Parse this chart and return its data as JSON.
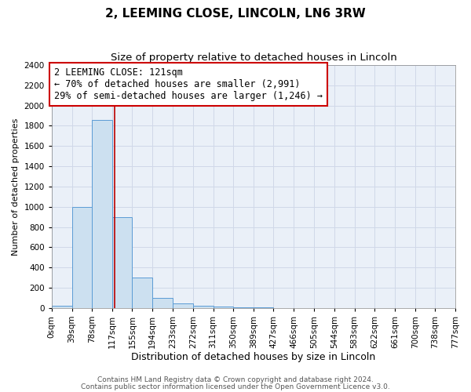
{
  "title": "2, LEEMING CLOSE, LINCOLN, LN6 3RW",
  "subtitle": "Size of property relative to detached houses in Lincoln",
  "xlabel": "Distribution of detached houses by size in Lincoln",
  "ylabel": "Number of detached properties",
  "bin_edges": [
    0,
    39,
    78,
    117,
    155,
    194,
    233,
    272,
    311,
    350,
    389,
    427,
    466,
    505,
    544,
    583,
    622,
    661,
    700,
    738,
    777
  ],
  "bin_counts": [
    20,
    1000,
    1860,
    900,
    300,
    100,
    45,
    20,
    15,
    5,
    5,
    0,
    0,
    0,
    0,
    0,
    0,
    0,
    0,
    0
  ],
  "tick_labels": [
    "0sqm",
    "39sqm",
    "78sqm",
    "117sqm",
    "155sqm",
    "194sqm",
    "233sqm",
    "272sqm",
    "311sqm",
    "350sqm",
    "389sqm",
    "427sqm",
    "466sqm",
    "505sqm",
    "544sqm",
    "583sqm",
    "622sqm",
    "661sqm",
    "700sqm",
    "738sqm",
    "777sqm"
  ],
  "bar_color": "#cce0f0",
  "bar_edge_color": "#5b9bd5",
  "grid_color": "#d0d8e8",
  "background_color": "#eaf0f8",
  "property_line_x": 121,
  "property_line_color": "#bb0000",
  "annotation_line1": "2 LEEMING CLOSE: 121sqm",
  "annotation_line2": "← 70% of detached houses are smaller (2,991)",
  "annotation_line3": "29% of semi-detached houses are larger (1,246) →",
  "annotation_box_edgecolor": "#cc0000",
  "annotation_box_facecolor": "#ffffff",
  "ylim": [
    0,
    2400
  ],
  "yticks": [
    0,
    200,
    400,
    600,
    800,
    1000,
    1200,
    1400,
    1600,
    1800,
    2000,
    2200,
    2400
  ],
  "footer_line1": "Contains HM Land Registry data © Crown copyright and database right 2024.",
  "footer_line2": "Contains public sector information licensed under the Open Government Licence v3.0.",
  "title_fontsize": 11,
  "subtitle_fontsize": 9.5,
  "xlabel_fontsize": 9,
  "ylabel_fontsize": 8,
  "tick_fontsize": 7.5,
  "annotation_fontsize": 8.5,
  "footer_fontsize": 6.5
}
